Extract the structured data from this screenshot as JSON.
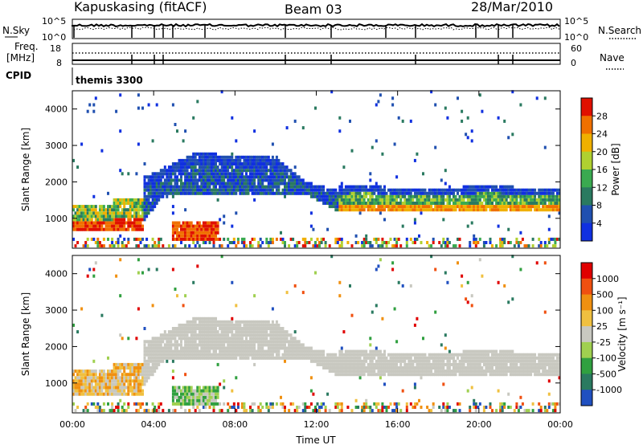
{
  "header": {
    "station": "Kapuskasing (fitACF)",
    "beam": "Beam 03",
    "date": "28/Mar/2010"
  },
  "strips": {
    "nsky_label": "N.Sky",
    "nsearch_label": "N.Search",
    "nsky_ticks": [
      "10^5",
      "10^0"
    ],
    "nsearch_ticks": [
      "10^5",
      "10^0"
    ],
    "freq_label": "Freq.",
    "freq_unit": "[MHz]",
    "freq_ticks": [
      "18",
      "8"
    ],
    "nave_label": "Nave",
    "nave_ticks": [
      "60",
      "0"
    ],
    "cpid_label": "CPID",
    "cpid_value": "themis 3300"
  },
  "colors": {
    "power_scale": [
      "#1030e0",
      "#2050b0",
      "#2a7a60",
      "#3aaa50",
      "#b0d030",
      "#f0b000",
      "#f07000",
      "#e01000"
    ],
    "velocity_scale": [
      "#2050c0",
      "#2a7a60",
      "#30a040",
      "#a0d050",
      "#c8c8c0",
      "#f0c040",
      "#f09010",
      "#f05010",
      "#e00000"
    ]
  },
  "chart_data": [
    {
      "type": "heatmap",
      "title": "Power",
      "ylabel": "Slant Range [km]",
      "xlabel": "",
      "ylim": [
        180,
        4500
      ],
      "xlim": [
        0,
        24
      ],
      "y_ticks": [
        "1000",
        "2000",
        "3000",
        "4000"
      ],
      "colorbar_label": "Power [dB]",
      "colorbar_ticks": [
        "4",
        "8",
        "12",
        "16",
        "20",
        "24",
        "28"
      ],
      "bands": [
        {
          "t": [
            0,
            3
          ],
          "range": [
            700,
            1300
          ],
          "level": "medium-high"
        },
        {
          "t": [
            3.5,
            11.5
          ],
          "range": [
            1600,
            2800
          ],
          "level": "low"
        },
        {
          "t": [
            4.8,
            7.0
          ],
          "range": [
            300,
            900
          ],
          "level": "high"
        },
        {
          "t": [
            13,
            24
          ],
          "range": [
            1100,
            1800
          ],
          "level": "medium"
        }
      ]
    },
    {
      "type": "heatmap",
      "title": "Velocity",
      "ylabel": "Slant Range [km]",
      "xlabel": "Time UT",
      "ylim": [
        180,
        4500
      ],
      "xlim": [
        0,
        24
      ],
      "y_ticks": [
        "1000",
        "2000",
        "3000",
        "4000"
      ],
      "x_ticks": [
        "00:00",
        "04:00",
        "08:00",
        "12:00",
        "16:00",
        "20:00",
        "00:00"
      ],
      "colorbar_label": "Velocity [m s⁻¹]",
      "colorbar_ticks": [
        "1000",
        "500",
        "100",
        "25",
        "-25",
        "-100",
        "-500",
        "-1000"
      ]
    }
  ]
}
